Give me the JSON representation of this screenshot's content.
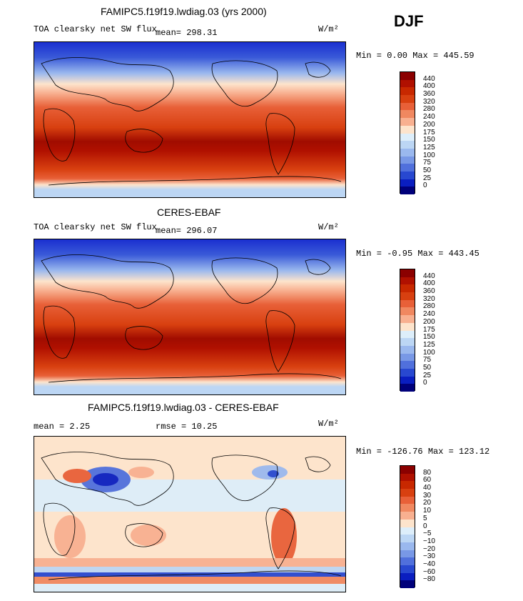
{
  "season": "DJF",
  "panels": [
    {
      "title": "FAMIPC5.f19f19.lwdiag.03 (yrs 2000)",
      "left_label": "TOA clearsky net SW flux",
      "mean_label": "mean= 298.31",
      "units": "W/m²",
      "minmax": "Min =   0.00 Max = 445.59",
      "colorbar_levels": [
        "440",
        "400",
        "360",
        "320",
        "280",
        "240",
        "200",
        "175",
        "150",
        "125",
        "100",
        "75",
        "50",
        "25",
        "0"
      ],
      "colorbar_colors": [
        "#8b0000",
        "#b01000",
        "#c82800",
        "#d84010",
        "#e86038",
        "#f08860",
        "#f8b090",
        "#fde4cc",
        "#ddeefa",
        "#bcd6f4",
        "#9ab8ee",
        "#7898e6",
        "#5070dc",
        "#2848d0",
        "#0a1ec0",
        "#00007a"
      ]
    },
    {
      "title": "CERES-EBAF",
      "left_label": "TOA clearsky net SW flux",
      "mean_label": "mean= 296.07",
      "units": "W/m²",
      "minmax": "Min =  -0.95 Max = 443.45",
      "colorbar_levels": [
        "440",
        "400",
        "360",
        "320",
        "280",
        "240",
        "200",
        "175",
        "150",
        "125",
        "100",
        "75",
        "50",
        "25",
        "0"
      ],
      "colorbar_colors": [
        "#8b0000",
        "#b01000",
        "#c82800",
        "#d84010",
        "#e86038",
        "#f08860",
        "#f8b090",
        "#fde4cc",
        "#ddeefa",
        "#bcd6f4",
        "#9ab8ee",
        "#7898e6",
        "#5070dc",
        "#2848d0",
        "#0a1ec0",
        "#00007a"
      ]
    },
    {
      "title": "FAMIPC5.f19f19.lwdiag.03 - CERES-EBAF",
      "left_label": "mean =    2.25",
      "mean_label": "rmse =   10.25",
      "units": "W/m²",
      "minmax": "Min = -126.76 Max = 123.12",
      "colorbar_levels": [
        "80",
        "60",
        "40",
        "30",
        "20",
        "10",
        "5",
        "0",
        "−5",
        "−10",
        "−20",
        "−30",
        "−40",
        "−60",
        "−80"
      ],
      "colorbar_colors": [
        "#8b0000",
        "#b01000",
        "#c82800",
        "#d84010",
        "#e86038",
        "#f08860",
        "#f8b090",
        "#fde4cc",
        "#ddeefa",
        "#bcd6f4",
        "#9ab8ee",
        "#7898e6",
        "#5070dc",
        "#2848d0",
        "#0a1ec0",
        "#00007a"
      ]
    }
  ],
  "chart_data": [
    {
      "type": "heatmap",
      "title": "FAMIPC5.f19f19.lwdiag.03 (yrs 2000)",
      "variable": "TOA clearsky net SW flux",
      "units": "W/m²",
      "mean": 298.31,
      "min": 0.0,
      "max": 445.59,
      "contour_levels": [
        0,
        25,
        50,
        75,
        100,
        125,
        150,
        175,
        200,
        240,
        280,
        320,
        360,
        400,
        440
      ]
    },
    {
      "type": "heatmap",
      "title": "CERES-EBAF",
      "variable": "TOA clearsky net SW flux",
      "units": "W/m²",
      "mean": 296.07,
      "min": -0.95,
      "max": 443.45,
      "contour_levels": [
        0,
        25,
        50,
        75,
        100,
        125,
        150,
        175,
        200,
        240,
        280,
        320,
        360,
        400,
        440
      ]
    },
    {
      "type": "heatmap",
      "title": "FAMIPC5.f19f19.lwdiag.03 - CERES-EBAF",
      "units": "W/m²",
      "mean": 2.25,
      "rmse": 10.25,
      "min": -126.76,
      "max": 123.12,
      "contour_levels": [
        -80,
        -60,
        -40,
        -30,
        -20,
        -10,
        -5,
        0,
        5,
        10,
        20,
        30,
        40,
        60,
        80
      ]
    }
  ]
}
